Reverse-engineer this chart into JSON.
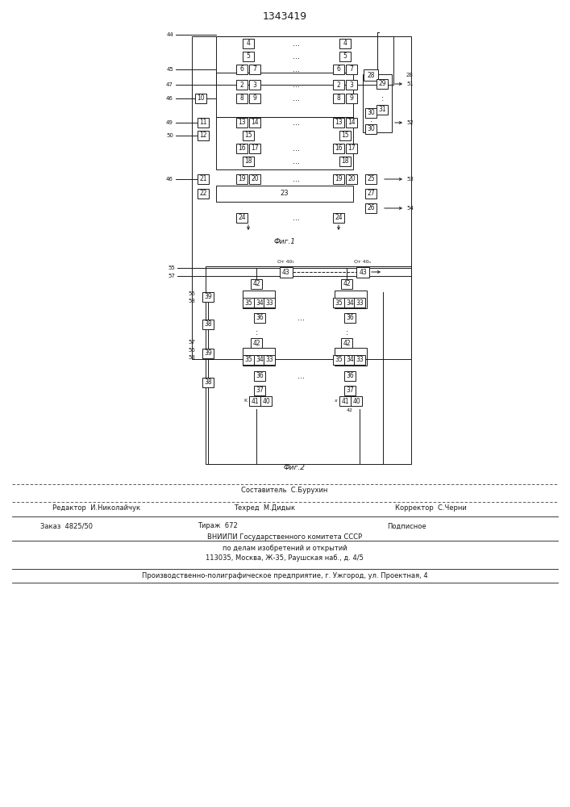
{
  "title": "1343419",
  "fig1_caption": "Фиг.1",
  "fig2_caption": "Фиг.2",
  "footer_line1": "Составитель  С.Бурухин",
  "footer_line2_left": "Редактор  И.Николайчук",
  "footer_line2_mid": "Техред  М.Дидык",
  "footer_line2_right": "Корректор  С.Черни",
  "footer_line3_a": "Заказ  4825/50",
  "footer_line3_b": "Тираж  672",
  "footer_line3_c": "Подписное",
  "footer_line4": "ВНИИПИ Государственного комитета СССР",
  "footer_line5": "по делам изобретений и открытий",
  "footer_line6": "113035, Москва, Ж-35, Раушская наб., д. 4/5",
  "footer_line7": "Производственно-полиграфическое предприятие, г. Ужгород, ул. Проектная, 4",
  "bg_color": "#ffffff",
  "line_color": "#1a1a1a",
  "box_color": "#ffffff",
  "text_color": "#1a1a1a"
}
